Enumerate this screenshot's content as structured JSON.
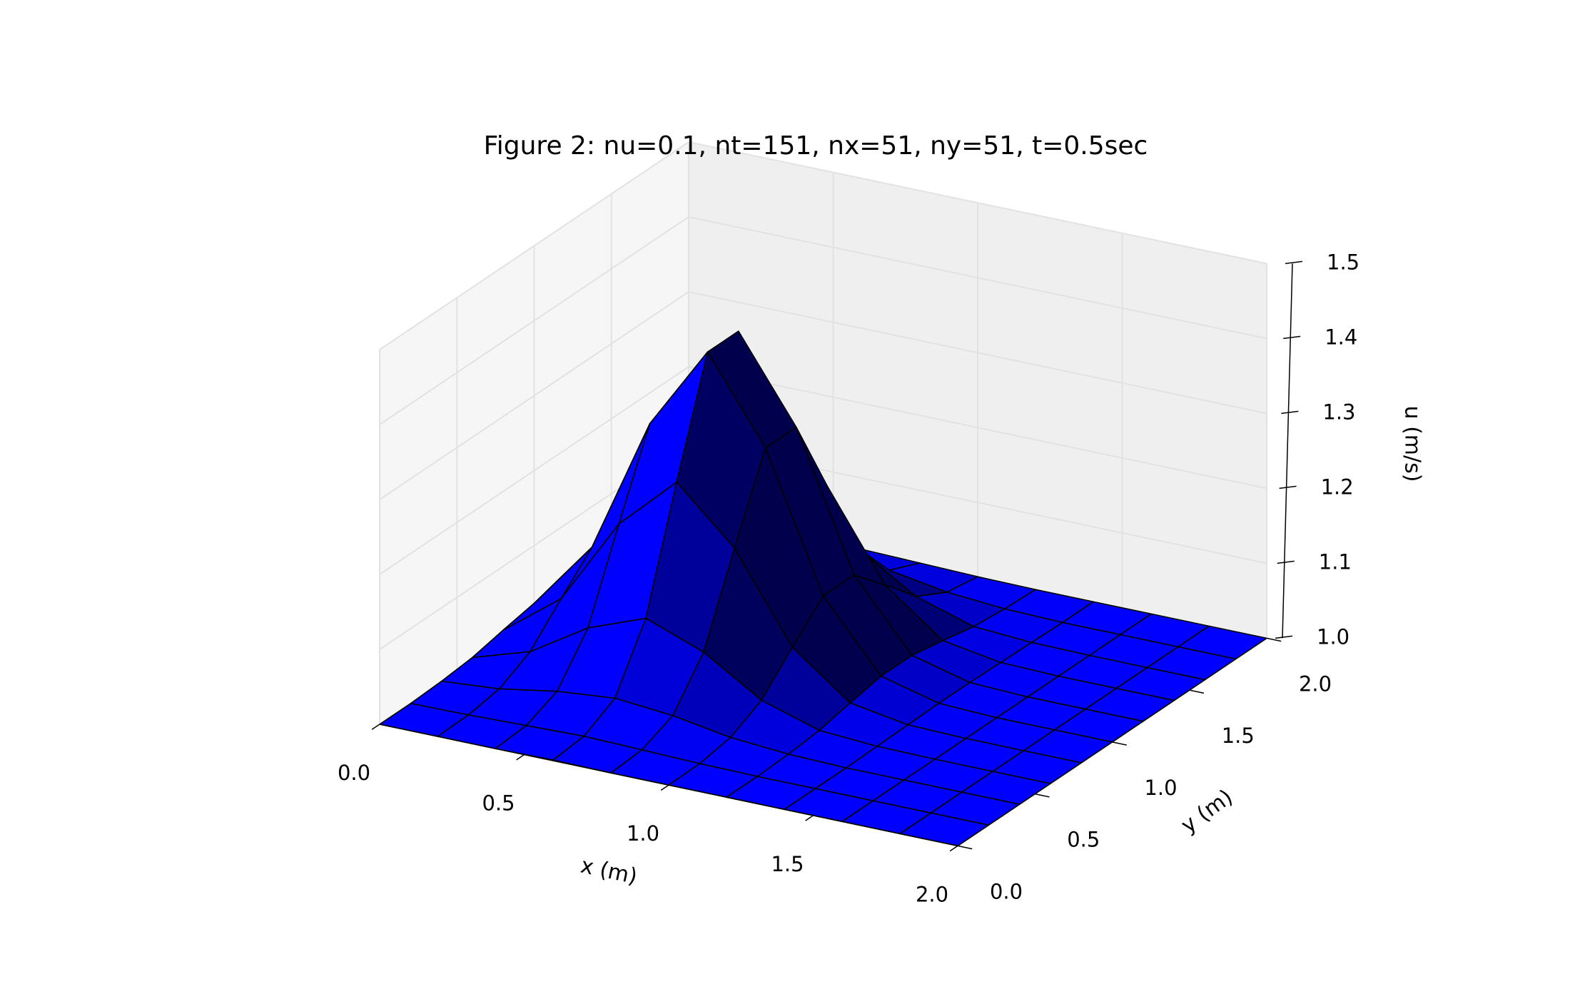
{
  "chart_data": {
    "type": "surface",
    "title": "Figure 2: nu=0.1, nt=151, nx=51, ny=51, t=0.5sec",
    "xlabel": "x (m)",
    "ylabel": "y (m)",
    "zlabel": "u (m/s)",
    "color": "#0000ff",
    "grid": true,
    "xlim": [
      0,
      2
    ],
    "ylim": [
      0,
      2
    ],
    "zlim": [
      1,
      1.5
    ],
    "xticks": [
      {
        "value": 0,
        "label": "0.0"
      },
      0.5,
      {
        "value": 1,
        "label": "1.0"
      },
      1.5,
      {
        "value": 2,
        "label": "2.0"
      }
    ],
    "yticks": [
      {
        "value": 0,
        "label": "0.0"
      },
      0.5,
      {
        "value": 1,
        "label": "1.0"
      },
      1.5,
      {
        "value": 2,
        "label": "2.0"
      }
    ],
    "zticks": [
      {
        "value": 1,
        "label": "1.0"
      },
      1.1,
      1.2,
      1.3,
      1.4,
      {
        "value": 1.5,
        "label": "1.5"
      }
    ],
    "x": [
      0,
      0.2,
      0.4,
      0.6,
      0.8,
      1.0,
      1.2,
      1.4,
      1.6,
      1.8,
      2.0
    ],
    "y": [
      0,
      0.2,
      0.4,
      0.6,
      0.8,
      1.0,
      1.2,
      1.4,
      1.6,
      1.8,
      2.0
    ],
    "z": [
      [
        1,
        1,
        1,
        1.001,
        1,
        1,
        1,
        1,
        1,
        1,
        1
      ],
      [
        1,
        1.001,
        1.003,
        1.005,
        1.003,
        1.001,
        1,
        1,
        1,
        1,
        1
      ],
      [
        1.002,
        1.008,
        1.021,
        1.028,
        1.021,
        1.008,
        1.002,
        1,
        1,
        1,
        1
      ],
      [
        1.006,
        1.03,
        1.078,
        1.107,
        1.078,
        1.03,
        1.006,
        1.001,
        1,
        1,
        1
      ],
      [
        1.015,
        1.073,
        1.189,
        1.261,
        1.189,
        1.073,
        1.015,
        1.002,
        1,
        1,
        1
      ],
      [
        1.023,
        1.114,
        1.295,
        1.407,
        1.295,
        1.114,
        1.023,
        1.003,
        1,
        1,
        1
      ],
      [
        1.023,
        1.114,
        1.295,
        1.407,
        1.295,
        1.114,
        1.023,
        1.003,
        1,
        1,
        1
      ],
      [
        1.015,
        1.073,
        1.189,
        1.261,
        1.189,
        1.073,
        1.015,
        1.002,
        1,
        1,
        1
      ],
      [
        1.006,
        1.03,
        1.078,
        1.107,
        1.078,
        1.03,
        1.006,
        1.001,
        1,
        1,
        1
      ],
      [
        1.002,
        1.008,
        1.021,
        1.028,
        1.021,
        1.008,
        1.002,
        1,
        1,
        1,
        1
      ],
      [
        1,
        1.001,
        1.003,
        1.005,
        1.003,
        1.001,
        1,
        1,
        1,
        1,
        1
      ]
    ]
  }
}
